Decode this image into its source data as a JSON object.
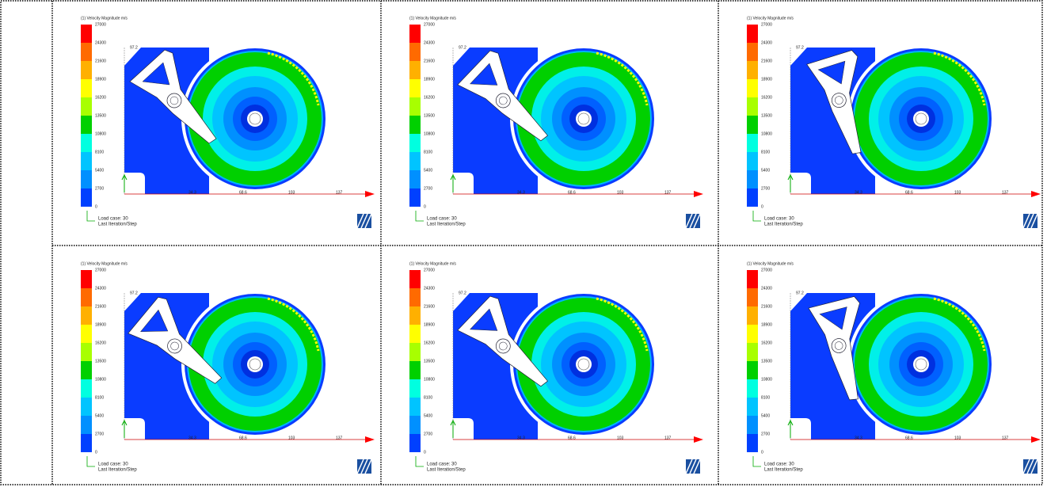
{
  "legend": {
    "title": "(1) Velocity Magnitude m/s",
    "levels": [
      "27000",
      "24300",
      "21600",
      "18900",
      "16200",
      "13500",
      "10800",
      "8100",
      "5400",
      "2700",
      "0"
    ],
    "colors": [
      "#ff0000",
      "#ff6a00",
      "#ffb000",
      "#ffff00",
      "#a8ff00",
      "#00d000",
      "#00ffe0",
      "#00c4ff",
      "#0090ff",
      "#0040ff"
    ]
  },
  "axis_labels": {
    "y": "97.2",
    "x": [
      "34.3",
      "68.6",
      "103",
      "137"
    ]
  },
  "caption": {
    "load_case": "Load case: 30",
    "step": "Last Iteration/Step"
  }
}
